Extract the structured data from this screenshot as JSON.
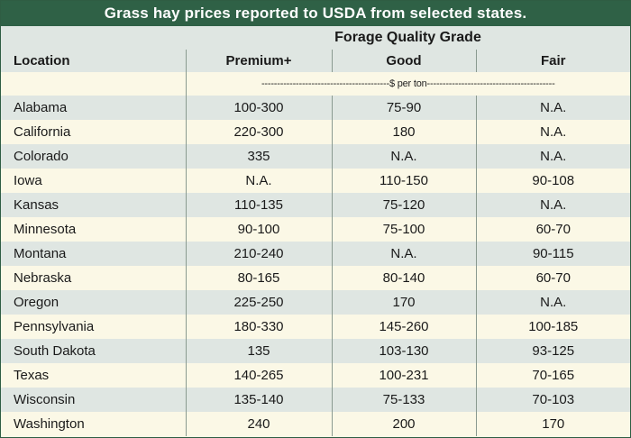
{
  "title": "Grass hay prices reported to USDA from selected states.",
  "header": {
    "group_label": "Forage Quality Grade",
    "location_label": "Location",
    "columns": [
      "Premium+",
      "Good",
      "Fair"
    ],
    "unit_label": "-----------------------------------------$ per ton-----------------------------------------"
  },
  "rows": [
    {
      "location": "Alabama",
      "premium": "100-300",
      "good": "75-90",
      "fair": "N.A."
    },
    {
      "location": "California",
      "premium": "220-300",
      "good": "180",
      "fair": "N.A."
    },
    {
      "location": "Colorado",
      "premium": "335",
      "good": "N.A.",
      "fair": "N.A."
    },
    {
      "location": "Iowa",
      "premium": "N.A.",
      "good": "110-150",
      "fair": "90-108"
    },
    {
      "location": "Kansas",
      "premium": "110-135",
      "good": "75-120",
      "fair": "N.A."
    },
    {
      "location": "Minnesota",
      "premium": "90-100",
      "good": "75-100",
      "fair": "60-70"
    },
    {
      "location": "Montana",
      "premium": "210-240",
      "good": "N.A.",
      "fair": "90-115"
    },
    {
      "location": "Nebraska",
      "premium": "80-165",
      "good": "80-140",
      "fair": "60-70"
    },
    {
      "location": "Oregon",
      "premium": "225-250",
      "good": "170",
      "fair": "N.A."
    },
    {
      "location": "Pennsylvania",
      "premium": "180-330",
      "good": "145-260",
      "fair": "100-185"
    },
    {
      "location": "South Dakota",
      "premium": "135",
      "good": "103-130",
      "fair": "93-125"
    },
    {
      "location": "Texas",
      "premium": "140-265",
      "good": "100-231",
      "fair": "70-165"
    },
    {
      "location": "Wisconsin",
      "premium": "135-140",
      "good": "75-133",
      "fair": "70-103"
    },
    {
      "location": "Washington",
      "premium": "240",
      "good": "200",
      "fair": "170"
    }
  ],
  "colors": {
    "title_bg": "#2f6146",
    "shade_row": "#dfe6e2",
    "light_row": "#fbf8e6"
  }
}
